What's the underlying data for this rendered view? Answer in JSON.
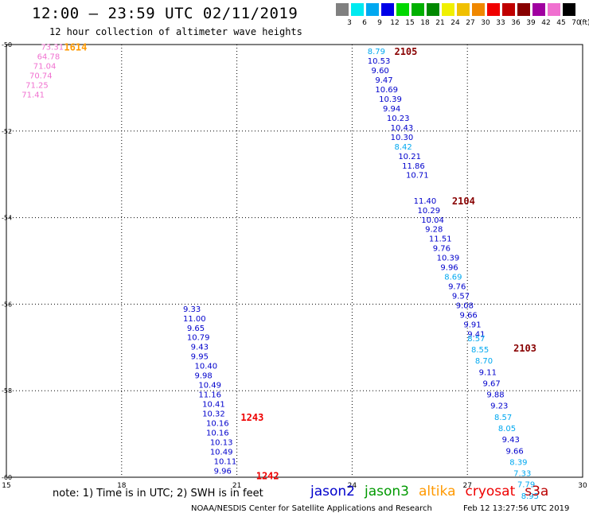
{
  "header": {
    "title": "12:00 — 23:59 UTC 02/11/2019",
    "subtitle": "12 hour collection of altimeter wave heights"
  },
  "colorscale": {
    "unit": "(ft)",
    "labels": [
      "3",
      "6",
      "9",
      "12",
      "15",
      "18",
      "21",
      "24",
      "27",
      "30",
      "33",
      "36",
      "39",
      "42",
      "45",
      "70"
    ],
    "colors": [
      "#808080",
      "#00eaf0",
      "#00a8f0",
      "#0000e8",
      "#00d800",
      "#00b000",
      "#008800",
      "#f0f000",
      "#f0c000",
      "#f08800",
      "#f00000",
      "#c00000",
      "#880000",
      "#a000a0",
      "#f070d0",
      "#000000"
    ]
  },
  "footer": {
    "note": "note:  1) Time is in UTC;  2) SWH is in feet",
    "credit": "NOAA/NESDIS Center for Satellite Applications and Research",
    "stamp": "Feb 12 13:27:56 UTC 2019"
  },
  "legend": [
    {
      "name": "jason2",
      "color": "#0000cc"
    },
    {
      "name": "jason3",
      "color": "#009900"
    },
    {
      "name": "altika",
      "color": "#ff9900"
    },
    {
      "name": "cryosat",
      "color": "#ee0000"
    },
    {
      "name": "s3a",
      "color": "#bb0000"
    }
  ],
  "chart_data": {
    "type": "scatter",
    "title": "12:00 — 23:59 UTC 02/11/2019",
    "subtitle": "12 hour collection of altimeter wave heights",
    "xlim": [
      15,
      30
    ],
    "ylim": [
      -60,
      -50
    ],
    "xticks": [
      "15",
      "18",
      "21",
      "24",
      "27",
      "30"
    ],
    "yticks": [
      "-50",
      "-52",
      "-54",
      "-56",
      "-58",
      "-60"
    ],
    "grid": true,
    "passes": [
      {
        "time": "1614",
        "color": "#ff9900",
        "x": 16.5,
        "y": -50.05
      },
      {
        "time": "2105",
        "color": "#880000",
        "x": 25.1,
        "y": -50.15
      },
      {
        "time": "2104",
        "color": "#880000",
        "x": 26.6,
        "y": -53.6
      },
      {
        "time": "2103",
        "color": "#880000",
        "x": 28.2,
        "y": -57.0
      },
      {
        "time": "1243",
        "color": "#ee0000",
        "x": 21.1,
        "y": -58.6
      },
      {
        "time": "1242",
        "color": "#ee0000",
        "x": 21.5,
        "y": -59.95
      }
    ],
    "points": [
      {
        "v": "73.31",
        "x": 15.9,
        "y": -50.05,
        "c": "#f070d0"
      },
      {
        "v": "64.78",
        "x": 15.8,
        "y": -50.27,
        "c": "#f070d0"
      },
      {
        "v": "71.04",
        "x": 15.7,
        "y": -50.49,
        "c": "#f070d0"
      },
      {
        "v": "70.74",
        "x": 15.6,
        "y": -50.71,
        "c": "#f070d0"
      },
      {
        "v": "71.25",
        "x": 15.5,
        "y": -50.93,
        "c": "#f070d0"
      },
      {
        "v": "71.41",
        "x": 15.4,
        "y": -51.15,
        "c": "#f070d0"
      },
      {
        "v": "8.79",
        "x": 24.4,
        "y": -50.15,
        "c": "#00a8f0"
      },
      {
        "v": "10.53",
        "x": 24.4,
        "y": -50.37,
        "c": "#0000cc"
      },
      {
        "v": "9.60",
        "x": 24.5,
        "y": -50.59,
        "c": "#0000cc"
      },
      {
        "v": "9.47",
        "x": 24.6,
        "y": -50.81,
        "c": "#0000cc"
      },
      {
        "v": "10.69",
        "x": 24.6,
        "y": -51.03,
        "c": "#0000cc"
      },
      {
        "v": "10.39",
        "x": 24.7,
        "y": -51.25,
        "c": "#0000cc"
      },
      {
        "v": "9.94",
        "x": 24.8,
        "y": -51.47,
        "c": "#0000cc"
      },
      {
        "v": "10.23",
        "x": 24.9,
        "y": -51.69,
        "c": "#0000cc"
      },
      {
        "v": "10.43",
        "x": 25.0,
        "y": -51.91,
        "c": "#0000cc"
      },
      {
        "v": "10.30",
        "x": 25.0,
        "y": -52.13,
        "c": "#0000cc"
      },
      {
        "v": "8.42",
        "x": 25.1,
        "y": -52.35,
        "c": "#00a8f0"
      },
      {
        "v": "10.21",
        "x": 25.2,
        "y": -52.57,
        "c": "#0000cc"
      },
      {
        "v": "11.86",
        "x": 25.3,
        "y": -52.79,
        "c": "#0000cc"
      },
      {
        "v": "10.71",
        "x": 25.4,
        "y": -53.01,
        "c": "#0000cc"
      },
      {
        "v": "11.40",
        "x": 25.6,
        "y": -53.6,
        "c": "#0000cc"
      },
      {
        "v": "10.29",
        "x": 25.7,
        "y": -53.82,
        "c": "#0000cc"
      },
      {
        "v": "10.04",
        "x": 25.8,
        "y": -54.04,
        "c": "#0000cc"
      },
      {
        "v": "9.28",
        "x": 25.9,
        "y": -54.26,
        "c": "#0000cc"
      },
      {
        "v": "11.51",
        "x": 26.0,
        "y": -54.48,
        "c": "#0000cc"
      },
      {
        "v": "9.76",
        "x": 26.1,
        "y": -54.7,
        "c": "#0000cc"
      },
      {
        "v": "10.39",
        "x": 26.2,
        "y": -54.92,
        "c": "#0000cc"
      },
      {
        "v": "9.96",
        "x": 26.3,
        "y": -55.14,
        "c": "#0000cc"
      },
      {
        "v": "8.69",
        "x": 26.4,
        "y": -55.36,
        "c": "#00a8f0"
      },
      {
        "v": "9.76",
        "x": 26.5,
        "y": -55.58,
        "c": "#0000cc"
      },
      {
        "v": "9.57",
        "x": 26.6,
        "y": -55.8,
        "c": "#0000cc"
      },
      {
        "v": "9.08",
        "x": 26.7,
        "y": -56.02,
        "c": "#0000cc"
      },
      {
        "v": "9.66",
        "x": 26.8,
        "y": -56.24,
        "c": "#0000cc"
      },
      {
        "v": "9.91",
        "x": 26.9,
        "y": -56.46,
        "c": "#0000cc"
      },
      {
        "v": "9.41",
        "x": 27.0,
        "y": -56.68,
        "c": "#0000cc"
      },
      {
        "v": "8.57",
        "x": 27.0,
        "y": -56.78,
        "c": "#00a8f0"
      },
      {
        "v": "8.55",
        "x": 27.1,
        "y": -57.04,
        "c": "#00a8f0"
      },
      {
        "v": "8.70",
        "x": 27.2,
        "y": -57.3,
        "c": "#00a8f0"
      },
      {
        "v": "9.11",
        "x": 27.3,
        "y": -57.56,
        "c": "#0000cc"
      },
      {
        "v": "9.67",
        "x": 27.4,
        "y": -57.82,
        "c": "#0000cc"
      },
      {
        "v": "9.88",
        "x": 27.5,
        "y": -58.08,
        "c": "#0000cc"
      },
      {
        "v": "9.23",
        "x": 27.6,
        "y": -58.34,
        "c": "#0000cc"
      },
      {
        "v": "8.57",
        "x": 27.7,
        "y": -58.6,
        "c": "#00a8f0"
      },
      {
        "v": "8.05",
        "x": 27.8,
        "y": -58.86,
        "c": "#00a8f0"
      },
      {
        "v": "9.43",
        "x": 27.9,
        "y": -59.12,
        "c": "#0000cc"
      },
      {
        "v": "9.66",
        "x": 28.0,
        "y": -59.38,
        "c": "#0000cc"
      },
      {
        "v": "8.39",
        "x": 28.1,
        "y": -59.64,
        "c": "#00a8f0"
      },
      {
        "v": "7.33",
        "x": 28.2,
        "y": -59.9,
        "c": "#00a8f0"
      },
      {
        "v": "7.79",
        "x": 28.3,
        "y": -60.16,
        "c": "#00a8f0"
      },
      {
        "v": "8.95",
        "x": 28.4,
        "y": -60.42,
        "c": "#00a8f0"
      },
      {
        "v": "9.33",
        "x": 19.6,
        "y": -56.1,
        "c": "#0000cc"
      },
      {
        "v": "11.00",
        "x": 19.6,
        "y": -56.32,
        "c": "#0000cc"
      },
      {
        "v": "9.65",
        "x": 19.7,
        "y": -56.54,
        "c": "#0000cc"
      },
      {
        "v": "10.79",
        "x": 19.7,
        "y": -56.76,
        "c": "#0000cc"
      },
      {
        "v": "9.43",
        "x": 19.8,
        "y": -56.98,
        "c": "#0000cc"
      },
      {
        "v": "9.95",
        "x": 19.8,
        "y": -57.2,
        "c": "#0000cc"
      },
      {
        "v": "10.40",
        "x": 19.9,
        "y": -57.42,
        "c": "#0000cc"
      },
      {
        "v": "9.98",
        "x": 19.9,
        "y": -57.64,
        "c": "#0000cc"
      },
      {
        "v": "10.49",
        "x": 20.0,
        "y": -57.86,
        "c": "#0000cc"
      },
      {
        "v": "11.16",
        "x": 20.0,
        "y": -58.08,
        "c": "#0000cc"
      },
      {
        "v": "10.41",
        "x": 20.1,
        "y": -58.3,
        "c": "#0000cc"
      },
      {
        "v": "10.32",
        "x": 20.1,
        "y": -58.52,
        "c": "#0000cc"
      },
      {
        "v": "10.16",
        "x": 20.2,
        "y": -58.74,
        "c": "#0000cc"
      },
      {
        "v": "10.16",
        "x": 20.2,
        "y": -58.96,
        "c": "#0000cc"
      },
      {
        "v": "10.13",
        "x": 20.3,
        "y": -59.18,
        "c": "#0000cc"
      },
      {
        "v": "10.49",
        "x": 20.3,
        "y": -59.4,
        "c": "#0000cc"
      },
      {
        "v": "10.11",
        "x": 20.4,
        "y": -59.62,
        "c": "#0000cc"
      },
      {
        "v": "9.96",
        "x": 20.4,
        "y": -59.84,
        "c": "#0000cc"
      }
    ]
  }
}
